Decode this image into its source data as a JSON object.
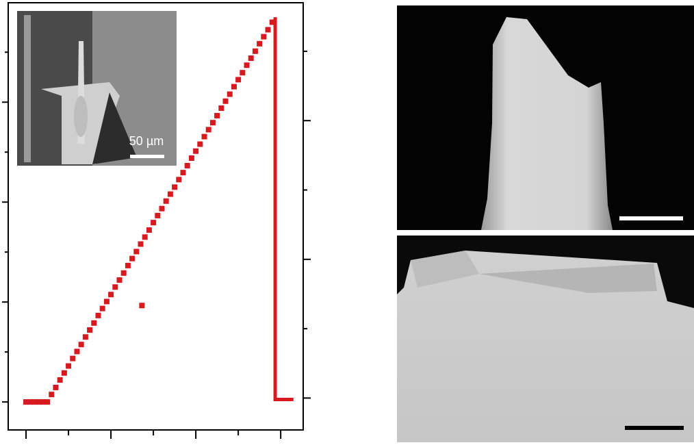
{
  "chart_data": {
    "type": "scatter",
    "inset_label": "50 µm",
    "xlim": [
      -0.42,
      6.53
    ],
    "xticks": [
      0,
      1,
      2,
      3,
      4,
      5,
      6
    ],
    "ylim": [
      -0.56,
      7.99
    ],
    "yticks": [
      0,
      1,
      2,
      3,
      4,
      5,
      6,
      7
    ],
    "y2lim": [
      -0.46,
      5.7
    ],
    "y2ticks": [
      0,
      1,
      2,
      3,
      4,
      5
    ],
    "series": [
      {
        "style": "markers",
        "color": "#d71920",
        "x": [
          0,
          0.1,
          0.2,
          0.3,
          0.4,
          0.5,
          0.6,
          0.7,
          0.8,
          0.9,
          1.0,
          1.1,
          1.2,
          1.3,
          1.4,
          1.5,
          1.6,
          1.7,
          1.8,
          1.9,
          2.0,
          2.1,
          2.2,
          2.3,
          2.4,
          2.5,
          2.6,
          2.7,
          2.8,
          2.9,
          3.0,
          3.1,
          3.2,
          3.3,
          3.4,
          3.5,
          3.6,
          3.7,
          3.8,
          3.9,
          4.0,
          4.1,
          4.2,
          4.3,
          4.4,
          4.5,
          4.6,
          4.7,
          4.8,
          4.9,
          5.0,
          5.1,
          5.2,
          5.3,
          5.4,
          5.5,
          5.6,
          5.7,
          5.8,
          2.73
        ],
        "values": [
          0,
          0,
          0,
          0,
          0,
          0,
          0.15,
          0.29,
          0.44,
          0.58,
          0.72,
          0.87,
          1.01,
          1.15,
          1.3,
          1.44,
          1.58,
          1.73,
          1.87,
          2.01,
          2.15,
          2.3,
          2.44,
          2.58,
          2.73,
          2.87,
          3.01,
          3.16,
          3.3,
          3.44,
          3.59,
          3.73,
          3.87,
          4.02,
          4.16,
          4.3,
          4.45,
          4.59,
          4.73,
          4.88,
          5.02,
          5.16,
          5.31,
          5.45,
          5.59,
          5.73,
          5.88,
          6.02,
          6.16,
          6.31,
          6.45,
          6.59,
          6.74,
          6.88,
          7.02,
          7.17,
          7.31,
          7.45,
          7.6,
          1.93
        ]
      },
      {
        "style": "line",
        "color": "#d71920",
        "x": [
          5.87,
          5.87,
          6.3
        ],
        "values": [
          7.7,
          0.05,
          0.05
        ]
      }
    ]
  }
}
